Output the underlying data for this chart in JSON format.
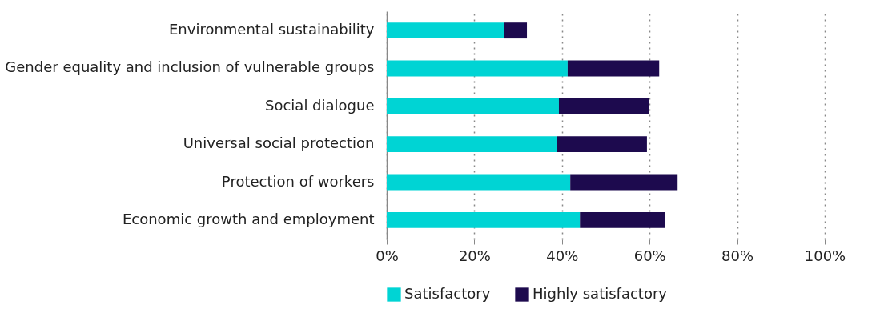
{
  "chart_data": {
    "type": "bar",
    "orientation": "horizontal",
    "stacked": true,
    "categories": [
      "Environmental sustainability",
      "Gender equality and inclusion of vulnerable groups",
      "Social dialogue",
      "Universal social protection",
      "Protection of workers",
      "Economic growth and employment"
    ],
    "series": [
      {
        "name": "Satisfactory",
        "color": "#00d4d4",
        "values": [
          26.7,
          41.3,
          39.3,
          38.9,
          41.9,
          44.1
        ]
      },
      {
        "name": "Highly satisfactory",
        "color": "#1d0a4e",
        "values": [
          5.3,
          20.9,
          20.5,
          20.5,
          24.5,
          19.5
        ]
      }
    ],
    "xlim": [
      0,
      100
    ],
    "xticks": [
      {
        "value": 0,
        "label": "0%"
      },
      {
        "value": 20,
        "label": "20%"
      },
      {
        "value": 40,
        "label": "40%"
      },
      {
        "value": 60,
        "label": "60%"
      },
      {
        "value": 80,
        "label": "80%"
      },
      {
        "value": 100,
        "label": "100%"
      }
    ],
    "grid": "x",
    "legend": "bottom"
  }
}
